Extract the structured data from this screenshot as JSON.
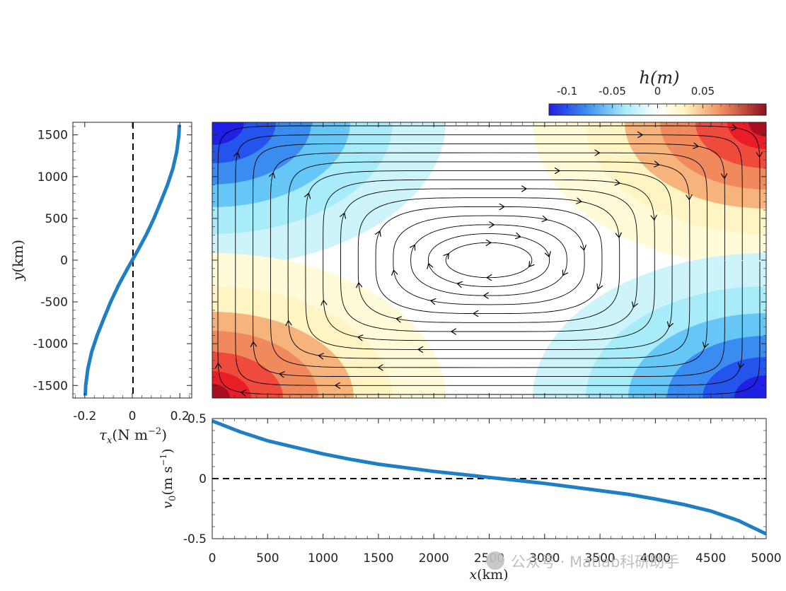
{
  "chart_data": [
    {
      "name": "sea-surface-height-map",
      "type": "heatmap",
      "title": "h(m)",
      "colorbar": {
        "label": "h(m)",
        "ticks": [
          -0.1,
          -0.05,
          0,
          0.05
        ],
        "tick_labels": [
          "-0.1",
          "-0.05",
          "0",
          "0.05"
        ],
        "range": [
          -0.12,
          0.12
        ],
        "colors": [
          "#1f1fe6",
          "#3a8cf0",
          "#a8ecfa",
          "#ffffff",
          "#fff5c4",
          "#f08a5c",
          "#8e0d1f"
        ]
      },
      "xlim": [
        0,
        5000
      ],
      "ylim": [
        -1650,
        1650
      ],
      "overlay": "streamlines (gyre circulation with direction arrows)"
    },
    {
      "name": "wind-stress-profile",
      "type": "line",
      "xlabel": "τ_x (N m^-2)",
      "ylabel": "y(km)",
      "xlim": [
        -0.25,
        0.25
      ],
      "ylim": [
        -1650,
        1650
      ],
      "x_ticks": [
        "-0.2",
        "0",
        "0.2"
      ],
      "y_ticks": [
        "-1500",
        "-1000",
        "-500",
        "0",
        "500",
        "1000",
        "1500"
      ],
      "y_tick_values": [
        -1500,
        -1000,
        -500,
        0,
        500,
        1000,
        1500
      ],
      "x_tick_values": [
        -0.2,
        0,
        0.2
      ],
      "series": [
        {
          "name": "tau_x",
          "y": [
            -1620,
            -1500,
            -1300,
            -1100,
            -900,
            -700,
            -500,
            -300,
            -100,
            0,
            100,
            300,
            500,
            700,
            900,
            1100,
            1300,
            1500,
            1620
          ],
          "x": [
            -0.198,
            -0.196,
            -0.187,
            -0.171,
            -0.148,
            -0.12,
            -0.091,
            -0.058,
            -0.02,
            0.0,
            0.02,
            0.058,
            0.091,
            0.12,
            0.148,
            0.171,
            0.187,
            0.196,
            0.198
          ]
        }
      ],
      "reference_line": "x = 0 (dashed)"
    },
    {
      "name": "meridional-velocity-profile",
      "type": "line",
      "xlabel": "x(km)",
      "ylabel": "v_0 (m s^-1)",
      "xlim": [
        0,
        5000
      ],
      "ylim": [
        -0.5,
        0.5
      ],
      "x_ticks": [
        "0",
        "500",
        "1000",
        "1500",
        "2000",
        "2500",
        "3000",
        "3500",
        "4000",
        "4500",
        "5000"
      ],
      "x_tick_values": [
        0,
        500,
        1000,
        1500,
        2000,
        2500,
        3000,
        3500,
        4000,
        4500,
        5000
      ],
      "y_ticks": [
        "-0.5",
        "0",
        "0.5"
      ],
      "y_tick_values": [
        -0.5,
        0,
        0.5
      ],
      "series": [
        {
          "name": "v0",
          "x": [
            0,
            250,
            500,
            750,
            1000,
            1250,
            1500,
            1750,
            2000,
            2250,
            2500,
            2750,
            3000,
            3250,
            3500,
            3750,
            4000,
            4250,
            4500,
            4750,
            5000
          ],
          "y": [
            0.48,
            0.39,
            0.315,
            0.26,
            0.205,
            0.16,
            0.12,
            0.09,
            0.06,
            0.035,
            0.01,
            -0.015,
            -0.04,
            -0.07,
            -0.1,
            -0.13,
            -0.17,
            -0.215,
            -0.27,
            -0.35,
            -0.46
          ]
        }
      ],
      "reference_line": "y = 0 (dashed)"
    }
  ],
  "watermark": {
    "text": "公众号 · Matlab科研助手"
  }
}
